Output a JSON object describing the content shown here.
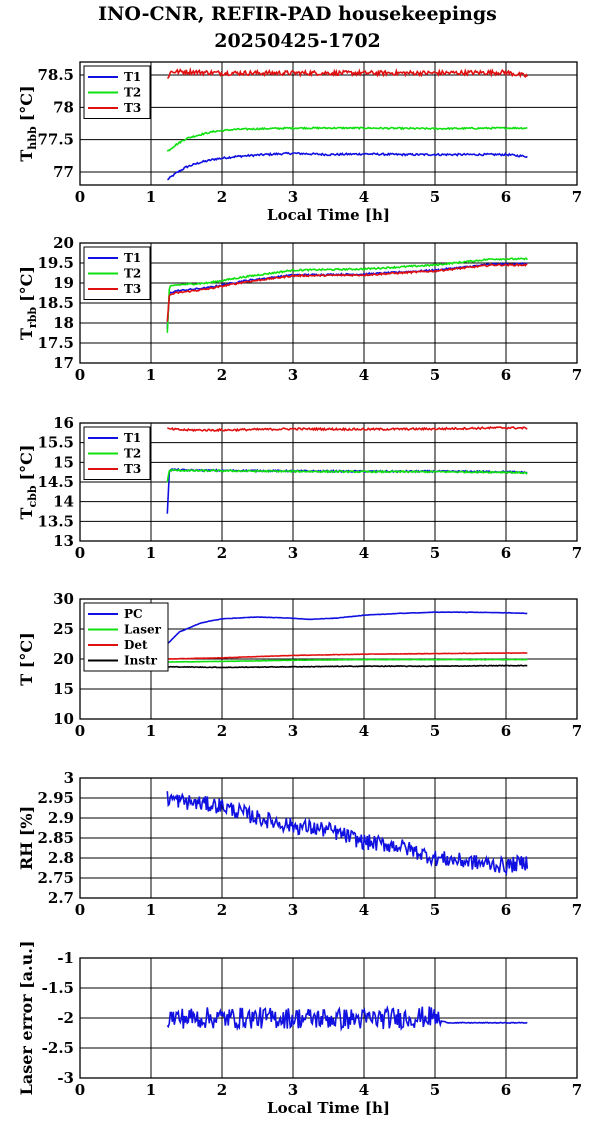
{
  "title_line1": "INO-CNR, REFIR-PAD housekeepings",
  "title_line2": "20250425-1702",
  "colors": {
    "blue": "#1010e0",
    "green": "#10e010",
    "red": "#e01010",
    "black": "#000000"
  },
  "chart_data": [
    {
      "type": "line",
      "ylabel_main": "T",
      "ylabel_sub": "hbb",
      "ylabel_unit": "[°C]",
      "xlabel": "Local Time [h]",
      "xlim": [
        0,
        7
      ],
      "ylim": [
        76.8,
        78.7
      ],
      "xticks": [
        "0",
        "1",
        "2",
        "3",
        "4",
        "5",
        "6",
        "7"
      ],
      "yticks": [
        {
          "v": 77,
          "label": "77"
        },
        {
          "v": 77.5,
          "label": "77.5"
        },
        {
          "v": 78,
          "label": "78"
        },
        {
          "v": 78.5,
          "label": "78.5"
        }
      ],
      "grid": true,
      "legend": "top-left",
      "series": [
        {
          "name": "T1",
          "color": "blue",
          "noise": 0.015,
          "points": [
            [
              1.23,
              76.88
            ],
            [
              1.35,
              76.98
            ],
            [
              1.5,
              77.08
            ],
            [
              1.7,
              77.15
            ],
            [
              1.9,
              77.2
            ],
            [
              2.2,
              77.24
            ],
            [
              2.6,
              77.27
            ],
            [
              3.0,
              77.29
            ],
            [
              3.5,
              77.27
            ],
            [
              4.0,
              77.28
            ],
            [
              4.5,
              77.27
            ],
            [
              5.0,
              77.27
            ],
            [
              5.5,
              77.27
            ],
            [
              6.0,
              77.27
            ],
            [
              6.3,
              77.24
            ]
          ]
        },
        {
          "name": "T2",
          "color": "green",
          "noise": 0.012,
          "points": [
            [
              1.23,
              77.32
            ],
            [
              1.35,
              77.42
            ],
            [
              1.5,
              77.52
            ],
            [
              1.7,
              77.58
            ],
            [
              1.9,
              77.63
            ],
            [
              2.2,
              77.66
            ],
            [
              2.6,
              77.67
            ],
            [
              3.0,
              77.68
            ],
            [
              4.0,
              77.68
            ],
            [
              5.0,
              77.67
            ],
            [
              6.0,
              77.68
            ],
            [
              6.3,
              77.68
            ]
          ]
        },
        {
          "name": "T3",
          "color": "red",
          "noise": 0.035,
          "points": [
            [
              1.23,
              78.45
            ],
            [
              1.28,
              78.55
            ],
            [
              1.5,
              78.55
            ],
            [
              2.0,
              78.53
            ],
            [
              3.0,
              78.53
            ],
            [
              4.0,
              78.53
            ],
            [
              5.0,
              78.53
            ],
            [
              6.0,
              78.54
            ],
            [
              6.3,
              78.48
            ]
          ]
        }
      ]
    },
    {
      "type": "line",
      "ylabel_main": "T",
      "ylabel_sub": "rbb",
      "ylabel_unit": "[°C]",
      "xlabel": "",
      "xlim": [
        0,
        7
      ],
      "ylim": [
        17,
        20
      ],
      "xticks": [
        "0",
        "1",
        "2",
        "3",
        "4",
        "5",
        "6",
        "7"
      ],
      "yticks": [
        {
          "v": 17,
          "label": "17"
        },
        {
          "v": 17.5,
          "label": "17.5"
        },
        {
          "v": 18,
          "label": "18"
        },
        {
          "v": 18.5,
          "label": "18.5"
        },
        {
          "v": 19,
          "label": "19"
        },
        {
          "v": 19.5,
          "label": "19.5"
        },
        {
          "v": 20,
          "label": "20"
        }
      ],
      "grid": true,
      "legend": "top-left",
      "series": [
        {
          "name": "T1",
          "color": "blue",
          "noise": 0.02,
          "points": [
            [
              1.23,
              17.85
            ],
            [
              1.26,
              18.75
            ],
            [
              1.35,
              18.8
            ],
            [
              1.8,
              18.88
            ],
            [
              2.3,
              19.05
            ],
            [
              3.0,
              19.2
            ],
            [
              4.0,
              19.22
            ],
            [
              5.0,
              19.32
            ],
            [
              5.8,
              19.47
            ],
            [
              6.3,
              19.48
            ]
          ]
        },
        {
          "name": "T2",
          "color": "green",
          "noise": 0.02,
          "points": [
            [
              1.23,
              17.75
            ],
            [
              1.26,
              18.9
            ],
            [
              1.35,
              18.95
            ],
            [
              1.8,
              19.0
            ],
            [
              2.3,
              19.15
            ],
            [
              3.0,
              19.32
            ],
            [
              4.0,
              19.35
            ],
            [
              5.0,
              19.45
            ],
            [
              5.8,
              19.6
            ],
            [
              6.3,
              19.6
            ]
          ]
        },
        {
          "name": "T3",
          "color": "red",
          "noise": 0.02,
          "points": [
            [
              1.23,
              18.05
            ],
            [
              1.26,
              18.7
            ],
            [
              1.35,
              18.75
            ],
            [
              1.8,
              18.85
            ],
            [
              2.3,
              19.02
            ],
            [
              3.0,
              19.18
            ],
            [
              4.0,
              19.2
            ],
            [
              5.0,
              19.3
            ],
            [
              5.8,
              19.45
            ],
            [
              6.3,
              19.45
            ]
          ]
        }
      ]
    },
    {
      "type": "line",
      "ylabel_main": "T",
      "ylabel_sub": "cbb",
      "ylabel_unit": "[°C]",
      "xlabel": "",
      "xlim": [
        0,
        7
      ],
      "ylim": [
        13,
        16
      ],
      "xticks": [
        "0",
        "1",
        "2",
        "3",
        "4",
        "5",
        "6",
        "7"
      ],
      "yticks": [
        {
          "v": 13,
          "label": "13"
        },
        {
          "v": 13.5,
          "label": "13.5"
        },
        {
          "v": 14,
          "label": "14"
        },
        {
          "v": 14.5,
          "label": "14.5"
        },
        {
          "v": 15,
          "label": "15"
        },
        {
          "v": 15.5,
          "label": "15.5"
        },
        {
          "v": 16,
          "label": "16"
        }
      ],
      "grid": true,
      "legend": "top-left",
      "series": [
        {
          "name": "T1",
          "color": "blue",
          "noise": 0.02,
          "points": [
            [
              1.23,
              13.7
            ],
            [
              1.26,
              14.82
            ],
            [
              1.5,
              14.8
            ],
            [
              3.0,
              14.78
            ],
            [
              4.0,
              14.77
            ],
            [
              5.0,
              14.77
            ],
            [
              6.0,
              14.76
            ],
            [
              6.3,
              14.74
            ]
          ]
        },
        {
          "name": "T2",
          "color": "green",
          "noise": 0.02,
          "points": [
            [
              1.23,
              14.5
            ],
            [
              1.26,
              14.8
            ],
            [
              1.5,
              14.79
            ],
            [
              3.0,
              14.77
            ],
            [
              4.0,
              14.76
            ],
            [
              5.0,
              14.76
            ],
            [
              6.0,
              14.75
            ],
            [
              6.3,
              14.73
            ]
          ]
        },
        {
          "name": "T3",
          "color": "red",
          "noise": 0.025,
          "points": [
            [
              1.23,
              15.85
            ],
            [
              1.5,
              15.82
            ],
            [
              2.0,
              15.82
            ],
            [
              3.0,
              15.85
            ],
            [
              4.0,
              15.84
            ],
            [
              5.0,
              15.85
            ],
            [
              6.0,
              15.88
            ],
            [
              6.3,
              15.87
            ]
          ]
        }
      ]
    },
    {
      "type": "line",
      "ylabel_main": "T [°C]",
      "ylabel_sub": "",
      "ylabel_unit": "",
      "xlabel": "",
      "xlim": [
        0,
        7
      ],
      "ylim": [
        10,
        30
      ],
      "xticks": [
        "0",
        "1",
        "2",
        "3",
        "4",
        "5",
        "6",
        "7"
      ],
      "yticks": [
        {
          "v": 10,
          "label": "10"
        },
        {
          "v": 15,
          "label": "15"
        },
        {
          "v": 20,
          "label": "20"
        },
        {
          "v": 25,
          "label": "25"
        },
        {
          "v": 30,
          "label": "30"
        }
      ],
      "grid": true,
      "legend": "top-left",
      "series": [
        {
          "name": "PC",
          "color": "blue",
          "noise": 0.03,
          "points": [
            [
              1.23,
              22.5
            ],
            [
              1.4,
              24.5
            ],
            [
              1.7,
              26.0
            ],
            [
              2.0,
              26.7
            ],
            [
              2.5,
              27.0
            ],
            [
              3.0,
              26.8
            ],
            [
              3.2,
              26.6
            ],
            [
              3.6,
              26.8
            ],
            [
              4.0,
              27.3
            ],
            [
              4.5,
              27.6
            ],
            [
              5.0,
              27.8
            ],
            [
              5.5,
              27.8
            ],
            [
              6.0,
              27.7
            ],
            [
              6.3,
              27.6
            ]
          ]
        },
        {
          "name": "Laser",
          "color": "green",
          "noise": 0.03,
          "points": [
            [
              1.23,
              19.5
            ],
            [
              2.0,
              19.6
            ],
            [
              3.0,
              19.8
            ],
            [
              4.0,
              19.9
            ],
            [
              5.0,
              19.9
            ],
            [
              6.0,
              19.9
            ],
            [
              6.3,
              19.9
            ]
          ]
        },
        {
          "name": "Det",
          "color": "red",
          "noise": 0.03,
          "points": [
            [
              1.23,
              20.0
            ],
            [
              2.0,
              20.2
            ],
            [
              3.0,
              20.6
            ],
            [
              4.0,
              20.8
            ],
            [
              5.0,
              20.9
            ],
            [
              6.0,
              21.0
            ],
            [
              6.3,
              21.0
            ]
          ]
        },
        {
          "name": "Instr",
          "color": "black",
          "noise": 0.05,
          "points": [
            [
              1.23,
              18.7
            ],
            [
              2.0,
              18.6
            ],
            [
              3.0,
              18.7
            ],
            [
              4.0,
              18.8
            ],
            [
              5.0,
              18.8
            ],
            [
              6.0,
              18.9
            ],
            [
              6.3,
              18.9
            ]
          ]
        }
      ]
    },
    {
      "type": "line",
      "ylabel_main": "RH [%]",
      "ylabel_sub": "",
      "ylabel_unit": "",
      "xlabel": "",
      "xlim": [
        0,
        7
      ],
      "ylim": [
        2.7,
        3.0
      ],
      "xticks": [
        "0",
        "1",
        "2",
        "3",
        "4",
        "5",
        "6",
        "7"
      ],
      "yticks": [
        {
          "v": 2.7,
          "label": "2.7"
        },
        {
          "v": 2.75,
          "label": "2.75"
        },
        {
          "v": 2.8,
          "label": "2.8"
        },
        {
          "v": 2.85,
          "label": "2.85"
        },
        {
          "v": 2.9,
          "label": "2.9"
        },
        {
          "v": 2.95,
          "label": "2.95"
        },
        {
          "v": 3.0,
          "label": "3"
        }
      ],
      "grid": true,
      "legend": "",
      "series": [
        {
          "name": "",
          "color": "blue",
          "noise": 0.02,
          "points": [
            [
              1.23,
              2.95
            ],
            [
              1.5,
              2.94
            ],
            [
              2.0,
              2.93
            ],
            [
              2.5,
              2.9
            ],
            [
              3.0,
              2.88
            ],
            [
              3.5,
              2.87
            ],
            [
              4.0,
              2.84
            ],
            [
              4.5,
              2.83
            ],
            [
              5.0,
              2.8
            ],
            [
              5.5,
              2.79
            ],
            [
              6.0,
              2.78
            ],
            [
              6.3,
              2.79
            ]
          ]
        }
      ]
    },
    {
      "type": "line",
      "ylabel_main": "Laser error [a.u.]",
      "ylabel_sub": "",
      "ylabel_unit": "",
      "xlabel": "Local Time [h]",
      "xlim": [
        0,
        7
      ],
      "ylim": [
        -3,
        -1
      ],
      "xticks": [
        "0",
        "1",
        "2",
        "3",
        "4",
        "5",
        "6",
        "7"
      ],
      "yticks": [
        {
          "v": -3,
          "label": "-3"
        },
        {
          "v": -2.5,
          "label": "-2.5"
        },
        {
          "v": -2,
          "label": "-2"
        },
        {
          "v": -1.5,
          "label": "-1.5"
        },
        {
          "v": -1,
          "label": "-1"
        }
      ],
      "grid": true,
      "legend": "",
      "series": [
        {
          "name": "",
          "color": "blue",
          "noise": 0.18,
          "noise_until": 5.08,
          "noise_after": 0.006,
          "points": [
            [
              1.23,
              -2.0
            ],
            [
              2.0,
              -2.0
            ],
            [
              3.0,
              -2.0
            ],
            [
              4.0,
              -2.02
            ],
            [
              5.0,
              -1.98
            ],
            [
              5.08,
              -2.05
            ],
            [
              5.2,
              -2.08
            ],
            [
              6.0,
              -2.08
            ],
            [
              6.3,
              -2.08
            ]
          ]
        }
      ]
    }
  ]
}
